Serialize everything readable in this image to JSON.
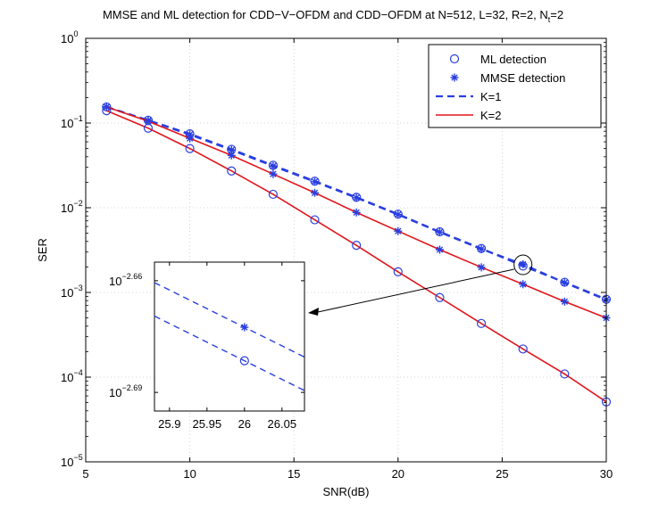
{
  "chart_data": {
    "type": "line",
    "title": {
      "main": "MMSE and ML detection for CDD−V−OFDM and CDD−OFDM at  N=512,  L=32, R=2, N",
      "subscript": "t",
      "tail": "=2"
    },
    "xlabel": "SNR(dB)",
    "ylabel": "SER",
    "xlim": [
      5,
      30
    ],
    "ylim_log10": [
      -5,
      0
    ],
    "x_ticks": [
      "5",
      "10",
      "15",
      "20",
      "25",
      "30"
    ],
    "y_ticks": [
      {
        "base": "10",
        "exp": "0"
      },
      {
        "base": "10",
        "exp": "−1"
      },
      {
        "base": "10",
        "exp": "−2"
      },
      {
        "base": "10",
        "exp": "−3"
      },
      {
        "base": "10",
        "exp": "−4"
      },
      {
        "base": "10",
        "exp": "−5"
      }
    ],
    "grid": true,
    "legend_position": "top-right",
    "legend": [
      {
        "label": "ML detection",
        "style": "circle-marker"
      },
      {
        "label": "MMSE detection",
        "style": "star-marker"
      },
      {
        "label": "K=1",
        "style": "dashed-blue"
      },
      {
        "label": "K=2",
        "style": "solid-red"
      }
    ],
    "x": [
      6,
      8,
      10,
      12,
      14,
      16,
      18,
      20,
      22,
      24,
      26,
      28,
      30
    ],
    "series": [
      {
        "name": "K=1 ML",
        "style": "dashed-blue",
        "marker": "circle",
        "values": [
          0.155,
          0.108,
          0.0745,
          0.049,
          0.0317,
          0.0206,
          0.0133,
          0.0084,
          0.0052,
          0.0033,
          0.00205,
          0.00132,
          0.00083
        ]
      },
      {
        "name": "K=1 MMSE",
        "style": "dashed-blue",
        "marker": "star",
        "values": [
          0.155,
          0.107,
          0.073,
          0.048,
          0.031,
          0.0203,
          0.0131,
          0.0083,
          0.00515,
          0.00325,
          0.00215,
          0.0013,
          0.00082
        ]
      },
      {
        "name": "K=2 ML",
        "style": "solid-red",
        "marker": "circle",
        "values": [
          0.14,
          0.087,
          0.05,
          0.0272,
          0.0144,
          0.0072,
          0.0036,
          0.00175,
          0.00087,
          0.00043,
          0.000215,
          0.000109,
          5.1e-05
        ]
      },
      {
        "name": "K=2 MMSE",
        "style": "solid-red",
        "marker": "star",
        "values": [
          0.155,
          0.105,
          0.066,
          0.0415,
          0.025,
          0.015,
          0.0088,
          0.0053,
          0.0032,
          0.00198,
          0.00125,
          0.00078,
          0.0005
        ]
      }
    ],
    "inset": {
      "xlim": [
        25.88,
        26.08
      ],
      "ylim_log10": [
        -2.695,
        -2.655
      ],
      "x_ticks": [
        "25.9",
        "25.95",
        "26",
        "26.05"
      ],
      "y_ticks": [
        {
          "base": "10",
          "exp": "−2.66",
          "value": -2.66
        },
        {
          "base": "10",
          "exp": "−2.69",
          "value": -2.69
        }
      ],
      "lines": [
        {
          "style": "dashed-blue",
          "x": [
            25.88,
            26.08
          ],
          "log10_y": [
            -2.6605,
            -2.6805
          ]
        },
        {
          "style": "dashed-blue",
          "x": [
            25.88,
            26.08
          ],
          "log10_y": [
            -2.6695,
            -2.6895
          ]
        }
      ],
      "markers": [
        {
          "marker": "star",
          "x": 26,
          "log10_y": -2.6725
        },
        {
          "marker": "circle",
          "x": 26,
          "log10_y": -2.6815
        }
      ],
      "zoom_target": {
        "x": 26,
        "y": 0.00212
      }
    }
  }
}
